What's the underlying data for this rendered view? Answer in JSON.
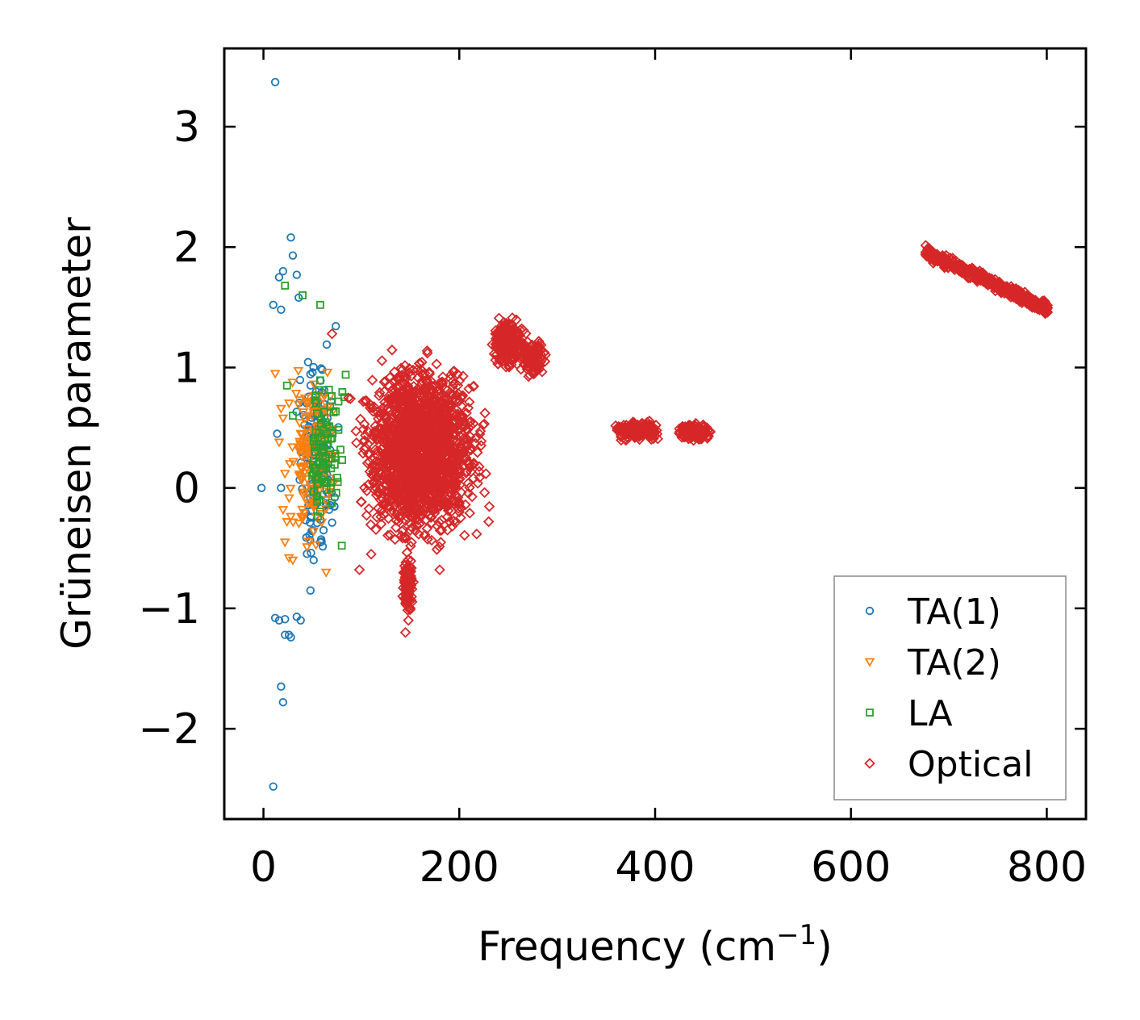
{
  "chart_data": {
    "type": "scatter",
    "xlabel": "Frequency (cm",
    "xlabel_sup": "−1",
    "xlabel_end": ")",
    "ylabel": "Grüneisen parameter",
    "xlim": [
      -40,
      840
    ],
    "ylim": [
      -2.75,
      3.65
    ],
    "xticks": [
      0,
      200,
      400,
      600,
      800
    ],
    "yticks": [
      -2,
      -1,
      0,
      1,
      2,
      3
    ],
    "xtick_labels": [
      "0",
      "200",
      "400",
      "600",
      "800"
    ],
    "ytick_labels": [
      "−2",
      "−1",
      "0",
      "1",
      "2",
      "3"
    ],
    "legend_position": "lower-right",
    "series": [
      {
        "name": "TA(1)",
        "marker": "circle",
        "color": "#1f77b4",
        "outliers": [
          [
            12,
            3.37
          ],
          [
            28,
            2.08
          ],
          [
            30,
            1.93
          ],
          [
            20,
            1.8
          ],
          [
            16,
            1.75
          ],
          [
            10,
            1.52
          ],
          [
            18,
            1.48
          ],
          [
            36,
            1.58
          ],
          [
            34,
            1.77
          ],
          [
            12,
            -1.08
          ],
          [
            16,
            -1.1
          ],
          [
            22,
            -1.09
          ],
          [
            26,
            -1.22
          ],
          [
            28,
            -1.24
          ],
          [
            22,
            -1.22
          ],
          [
            18,
            -1.65
          ],
          [
            20,
            -1.78
          ],
          [
            10,
            -2.48
          ],
          [
            34,
            -1.07
          ],
          [
            38,
            -1.1
          ],
          [
            -2,
            0.0
          ],
          [
            18,
            0.0
          ],
          [
            14,
            0.45
          ]
        ],
        "clusters": [
          [
            30,
            80,
            -0.95,
            1.4,
            150
          ]
        ]
      },
      {
        "name": "TA(2)",
        "marker": "triangle-down",
        "color": "#ff7f0e",
        "outliers": [
          [
            12,
            0.95
          ],
          [
            18,
            0.66
          ],
          [
            20,
            0.58
          ],
          [
            16,
            0.38
          ],
          [
            22,
            0.12
          ],
          [
            20,
            -0.18
          ],
          [
            24,
            -0.28
          ],
          [
            22,
            -0.45
          ],
          [
            26,
            -0.58
          ],
          [
            30,
            -0.6
          ],
          [
            64,
            -0.7
          ]
        ],
        "clusters": [
          [
            20,
            78,
            -0.7,
            1.15,
            150
          ]
        ]
      },
      {
        "name": "LA",
        "marker": "square",
        "color": "#2ca02c",
        "outliers": [
          [
            22,
            1.68
          ],
          [
            40,
            1.6
          ],
          [
            58,
            1.52
          ],
          [
            24,
            0.85
          ],
          [
            30,
            0.6
          ],
          [
            80,
            -0.48
          ],
          [
            84,
            0.94
          ]
        ],
        "clusters": [
          [
            40,
            85,
            -0.5,
            1.2,
            90
          ]
        ]
      },
      {
        "name": "Optical",
        "marker": "diamond",
        "color": "#d62728",
        "outliers": [
          [
            70,
            1.28
          ],
          [
            145,
            -1.2
          ],
          [
            148,
            -1.1
          ],
          [
            150,
            -1.0
          ],
          [
            144,
            -0.92
          ],
          [
            230,
            -0.28
          ],
          [
            200,
            -0.2
          ],
          [
            98,
            -0.68
          ],
          [
            110,
            -0.55
          ],
          [
            180,
            -0.68
          ]
        ],
        "clusters": [
          [
            85,
            235,
            -0.6,
            1.2,
            1800
          ],
          [
            140,
            155,
            -1.05,
            -0.55,
            120
          ],
          [
            230,
            270,
            0.95,
            1.45,
            260
          ],
          [
            260,
            290,
            0.9,
            1.25,
            90
          ],
          [
            355,
            410,
            0.38,
            0.57,
            220
          ],
          [
            420,
            460,
            0.38,
            0.55,
            160
          ]
        ],
        "bands": [
          [
            676,
            1.96,
            802,
            1.48,
            0.07,
            420
          ]
        ]
      }
    ]
  }
}
